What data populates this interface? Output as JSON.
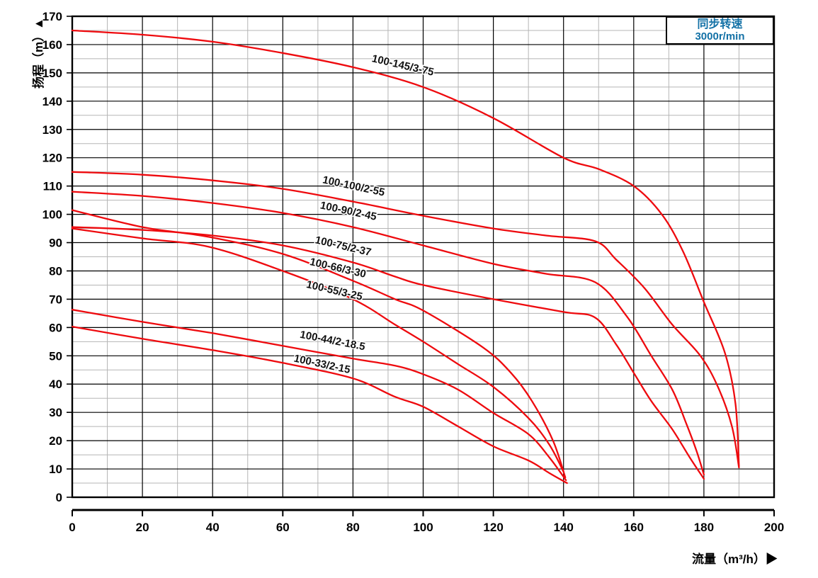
{
  "colors": {
    "curve": "#ee0a0e",
    "legend_text": "#1371a6",
    "grid_major": "#000000",
    "grid_minor": "#b5b5b5",
    "axis": "#000000",
    "label_text": "#111111"
  },
  "chart_data": {
    "type": "line",
    "xlabel": "流量（m³/h）▶",
    "ylabel": "扬程（m）▲",
    "legend": {
      "line1": "同步转速",
      "line2": "3000r/min"
    },
    "xlim": [
      0,
      200
    ],
    "ylim": [
      0,
      170
    ],
    "x_ticks": [
      0,
      20,
      40,
      60,
      80,
      100,
      120,
      140,
      160,
      180,
      200
    ],
    "y_ticks": [
      0,
      10,
      20,
      30,
      40,
      50,
      60,
      70,
      80,
      90,
      100,
      110,
      120,
      130,
      140,
      150,
      160,
      170
    ],
    "x_minor_step": 10,
    "y_minor_step": 5,
    "grid": "on",
    "legend_position": "top-right",
    "series": [
      {
        "name": "100-145/3-75",
        "label": {
          "q": 94,
          "h": 151.5,
          "rot": 13
        },
        "points": [
          [
            0,
            165
          ],
          [
            20,
            163.5
          ],
          [
            40,
            161
          ],
          [
            60,
            157
          ],
          [
            80,
            152
          ],
          [
            100,
            145
          ],
          [
            120,
            134
          ],
          [
            140,
            120
          ],
          [
            150,
            116
          ],
          [
            160,
            110
          ],
          [
            168,
            100
          ],
          [
            174,
            87
          ],
          [
            180,
            69
          ],
          [
            186,
            51
          ],
          [
            189,
            33
          ],
          [
            190,
            11
          ]
        ]
      },
      {
        "name": "100-100/2-55",
        "label": {
          "q": 80,
          "h": 108.8,
          "rot": 12
        },
        "points": [
          [
            0,
            115
          ],
          [
            20,
            114
          ],
          [
            40,
            112
          ],
          [
            60,
            109
          ],
          [
            80,
            104.5
          ],
          [
            100,
            99.5
          ],
          [
            120,
            95
          ],
          [
            135,
            92.5
          ],
          [
            149,
            90.5
          ],
          [
            155,
            84
          ],
          [
            163,
            74
          ],
          [
            171,
            61
          ],
          [
            179,
            50
          ],
          [
            184,
            39
          ],
          [
            188,
            25
          ],
          [
            190,
            10.5
          ]
        ]
      },
      {
        "name": "100-90/2-45",
        "label": {
          "q": 78.5,
          "h": 100,
          "rot": 12
        },
        "points": [
          [
            0,
            108
          ],
          [
            20,
            106.5
          ],
          [
            40,
            104
          ],
          [
            60,
            100.5
          ],
          [
            80,
            95.5
          ],
          [
            100,
            89
          ],
          [
            120,
            82.5
          ],
          [
            135,
            79
          ],
          [
            149,
            76
          ],
          [
            158,
            64
          ],
          [
            165,
            50
          ],
          [
            171,
            38
          ],
          [
            175,
            26
          ],
          [
            178,
            16
          ],
          [
            180,
            8
          ]
        ]
      },
      {
        "name": "100-75/2-37",
        "label": {
          "q": 77,
          "h": 87.6,
          "rot": 13
        },
        "points": [
          [
            0,
            95.5
          ],
          [
            20,
            94.5
          ],
          [
            40,
            92.5
          ],
          [
            60,
            89
          ],
          [
            80,
            83
          ],
          [
            92,
            78
          ],
          [
            100,
            75
          ],
          [
            120,
            70
          ],
          [
            140,
            65.5
          ],
          [
            149,
            63.5
          ],
          [
            155,
            54
          ],
          [
            160,
            44
          ],
          [
            165,
            34
          ],
          [
            171,
            24
          ],
          [
            176,
            14
          ],
          [
            180,
            6.5
          ]
        ]
      },
      {
        "name": "100-66/3-30",
        "label": {
          "q": 75.5,
          "h": 79.9,
          "rot": 13
        },
        "points": [
          [
            0,
            101.5
          ],
          [
            20,
            95.5
          ],
          [
            39,
            92
          ],
          [
            60,
            86
          ],
          [
            80,
            76.5
          ],
          [
            92,
            70
          ],
          [
            100,
            66
          ],
          [
            117,
            53
          ],
          [
            125,
            44
          ],
          [
            131,
            34
          ],
          [
            137,
            20
          ],
          [
            140.5,
            7
          ]
        ]
      },
      {
        "name": "100-55/3-25",
        "label": {
          "q": 74.5,
          "h": 71.9,
          "rot": 13
        },
        "points": [
          [
            0,
            95
          ],
          [
            20,
            91.5
          ],
          [
            39,
            88.5
          ],
          [
            60,
            80
          ],
          [
            80,
            70
          ],
          [
            92,
            61
          ],
          [
            100,
            55
          ],
          [
            110,
            47
          ],
          [
            120,
            39
          ],
          [
            130,
            28
          ],
          [
            136,
            18.5
          ],
          [
            140,
            9
          ]
        ]
      },
      {
        "name": "100-44/2-18.5",
        "label": {
          "q": 74,
          "h": 54.2,
          "rot": 11
        },
        "points": [
          [
            0,
            66.3
          ],
          [
            20,
            62
          ],
          [
            40,
            58
          ],
          [
            60,
            53.5
          ],
          [
            80,
            49
          ],
          [
            92,
            46.5
          ],
          [
            100,
            43.5
          ],
          [
            110,
            38
          ],
          [
            120,
            29.8
          ],
          [
            130,
            22.3
          ],
          [
            136,
            14
          ],
          [
            140.7,
            6
          ]
        ]
      },
      {
        "name": "100-33/2-15",
        "label": {
          "q": 71,
          "h": 45.9,
          "rot": 12
        },
        "points": [
          [
            0,
            60.3
          ],
          [
            20,
            56
          ],
          [
            40,
            52
          ],
          [
            60,
            47.5
          ],
          [
            80,
            42
          ],
          [
            92,
            35.5
          ],
          [
            100,
            32
          ],
          [
            110,
            25
          ],
          [
            120,
            18
          ],
          [
            130,
            13
          ],
          [
            136,
            8.5
          ],
          [
            141,
            5
          ]
        ]
      }
    ]
  }
}
